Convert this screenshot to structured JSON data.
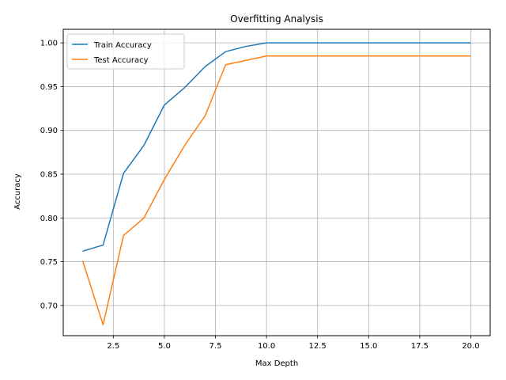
{
  "chart_data": {
    "type": "line",
    "title": "Overfitting Analysis",
    "xlabel": "Max Depth",
    "ylabel": "Accuracy",
    "xlim": [
      0.05,
      20.95
    ],
    "ylim": [
      0.6655,
      1.0155
    ],
    "x_ticks": [
      2.5,
      5.0,
      7.5,
      10.0,
      12.5,
      15.0,
      17.5,
      20.0
    ],
    "x_tick_labels": [
      "2.5",
      "5.0",
      "7.5",
      "10.0",
      "12.5",
      "15.0",
      "17.5",
      "20.0"
    ],
    "y_ticks": [
      0.7,
      0.75,
      0.8,
      0.85,
      0.9,
      0.95,
      1.0
    ],
    "y_tick_labels": [
      "0.70",
      "0.75",
      "0.80",
      "0.85",
      "0.90",
      "0.95",
      "1.00"
    ],
    "grid": true,
    "legend_position": "upper-left",
    "x": [
      1,
      2,
      3,
      4,
      5,
      6,
      7,
      8,
      9,
      10,
      11,
      12,
      13,
      14,
      15,
      16,
      17,
      18,
      19,
      20
    ],
    "series": [
      {
        "name": "Train Accuracy",
        "color": "#1f77b4",
        "values": [
          0.762,
          0.769,
          0.851,
          0.883,
          0.929,
          0.949,
          0.973,
          0.99,
          0.996,
          1.0,
          1.0,
          1.0,
          1.0,
          1.0,
          1.0,
          1.0,
          1.0,
          1.0,
          1.0,
          1.0
        ]
      },
      {
        "name": "Test Accuracy",
        "color": "#ff7f0e",
        "values": [
          0.751,
          0.678,
          0.78,
          0.8,
          0.844,
          0.883,
          0.917,
          0.975,
          0.98,
          0.985,
          0.985,
          0.985,
          0.985,
          0.985,
          0.985,
          0.985,
          0.985,
          0.985,
          0.985,
          0.985
        ]
      }
    ]
  }
}
